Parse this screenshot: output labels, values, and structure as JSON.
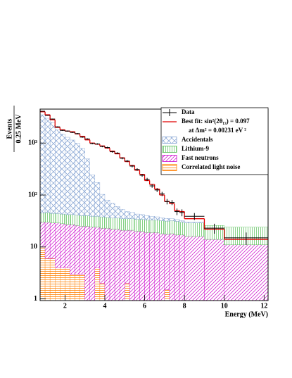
{
  "chart_data": {
    "type": "histogram",
    "stacked": true,
    "log_y": true,
    "legend": "upper right",
    "xlabel": "Energy (MeV)",
    "ylabel_top": "Events",
    "ylabel_bottom": "0.25 MeV",
    "legend_note": "at Δm² = 0.00231 eV ²",
    "xlim": [
      0.75,
      12.2
    ],
    "ylim": [
      0.93,
      4500
    ],
    "xticks": [
      2,
      4,
      6,
      8,
      10,
      12
    ],
    "yticks": [
      1,
      10,
      {
        "value": 100,
        "label": "10²"
      },
      {
        "value": 1000,
        "label": "10³"
      }
    ],
    "bins": [
      0.75,
      1.0,
      1.25,
      1.5,
      1.75,
      2.0,
      2.25,
      2.5,
      2.75,
      3.0,
      3.25,
      3.5,
      3.75,
      4.0,
      4.25,
      4.5,
      4.75,
      5.0,
      5.25,
      5.5,
      5.75,
      6.0,
      6.25,
      6.5,
      6.75,
      7.0,
      7.25,
      7.5,
      7.75,
      8.0,
      9.0,
      10.0,
      12.2
    ],
    "series": [
      {
        "name": "Data",
        "style": "points",
        "color": "#000000",
        "values": [
          4100,
          3400,
          2900,
          2050,
          1750,
          1700,
          1600,
          1520,
          1300,
          1200,
          980,
          960,
          860,
          820,
          680,
          640,
          510,
          450,
          360,
          310,
          240,
          200,
          150,
          125,
          105,
          75,
          72,
          48,
          46,
          39,
          23,
          15
        ],
        "errors": [
          64,
          58,
          54,
          45,
          42,
          41,
          40,
          39,
          36,
          35,
          31,
          31,
          29,
          29,
          26,
          25,
          23,
          21,
          19,
          18,
          15,
          14,
          12,
          11,
          10,
          9,
          8,
          7,
          7,
          6,
          5,
          4
        ]
      },
      {
        "name": "Best fit: sin²(2θ₁₃) = 0.097",
        "style": "step",
        "color": "#e00000",
        "values": [
          4000,
          3500,
          2800,
          2000,
          1800,
          1700,
          1650,
          1500,
          1350,
          1150,
          1000,
          950,
          880,
          800,
          700,
          620,
          520,
          440,
          370,
          300,
          250,
          190,
          160,
          130,
          100,
          75,
          68,
          50,
          48,
          35,
          22,
          14
        ]
      },
      {
        "name": "Accidentals",
        "style": "hatch",
        "hatch": "cross",
        "color": "#7f9fd0",
        "values": [
          3450,
          2950,
          2450,
          1750,
          1450,
          1250,
          1100,
          950,
          750,
          455,
          205,
          135,
          65,
          43,
          33,
          24,
          18,
          13,
          11,
          9,
          8,
          7,
          6,
          5,
          4,
          4,
          3,
          3,
          2,
          1,
          0,
          0
        ]
      },
      {
        "name": "Lithium-9",
        "style": "hatch",
        "hatch": "vertical",
        "color": "#55c055",
        "values": [
          15,
          16,
          15,
          15,
          15,
          15,
          15,
          15,
          15,
          15,
          15,
          15,
          15,
          14,
          14,
          14,
          14,
          14,
          14,
          14,
          14,
          14,
          14,
          14,
          14,
          14,
          14,
          14,
          13,
          13,
          12,
          13
        ]
      },
      {
        "name": "Fast neutrons",
        "style": "hatch",
        "hatch": "diagonal",
        "color": "#cc00cc",
        "values": [
          20,
          24,
          23,
          25,
          24,
          23,
          24,
          23,
          22,
          25,
          24,
          20,
          21,
          23,
          22,
          22,
          21,
          19,
          21,
          20,
          20,
          19,
          19,
          19,
          18,
          16,
          18,
          17,
          17,
          16,
          14,
          11
        ]
      },
      {
        "name": "Correlated light noise",
        "style": "hatch",
        "hatch": "horizontal",
        "color": "#ff7f00",
        "values": [
          10,
          6,
          6,
          4,
          4,
          4,
          3,
          3,
          3,
          0,
          0,
          4,
          2,
          0,
          0,
          0,
          0,
          2,
          0,
          0,
          0,
          0,
          0,
          0,
          0,
          1.5,
          0,
          0,
          0,
          0,
          0,
          0
        ]
      }
    ]
  }
}
